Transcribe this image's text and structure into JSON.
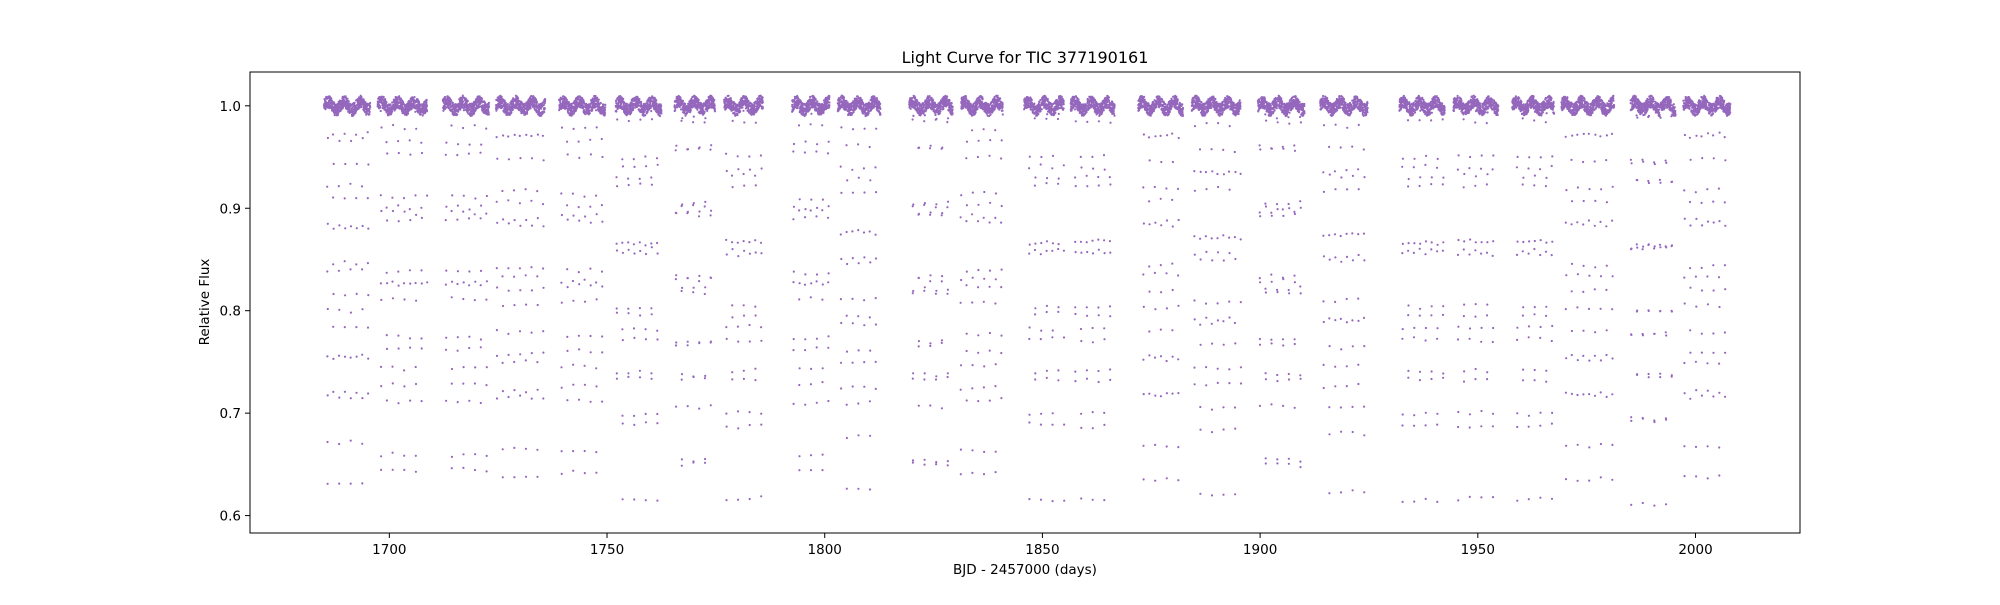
{
  "chart_data": {
    "type": "scatter",
    "title": "Light Curve for TIC 377190161",
    "xlabel": "BJD - 2457000 (days)",
    "ylabel": "Relative Flux",
    "xlim": [
      1668,
      2024
    ],
    "ylim": [
      0.583,
      1.033
    ],
    "xticks": [
      1700,
      1750,
      1800,
      1850,
      1900,
      1950,
      2000
    ],
    "yticks": [
      0.6,
      0.7,
      0.8,
      0.9,
      1.0
    ],
    "xtick_labels": [
      "1700",
      "1750",
      "1800",
      "1850",
      "1900",
      "1950",
      "2000"
    ],
    "ytick_labels": [
      "0.6",
      "0.7",
      "0.8",
      "0.9",
      "1.0"
    ],
    "grid": false,
    "legend": "none",
    "marker_color": "#9467bd",
    "series": [
      {
        "baseline_flux": 1.0,
        "eclipse_period_days": 2.66,
        "primary_eclipse_min_flux": 0.61,
        "secondary_eclipse_min_flux": 0.705,
        "observing_windows": [
          [
            1685.0,
            1695.6
          ],
          [
            1697.3,
            1708.7
          ],
          [
            1712.3,
            1722.9
          ],
          [
            1724.5,
            1735.8
          ],
          [
            1739.0,
            1749.6
          ],
          [
            1752.0,
            1762.5
          ],
          [
            1765.5,
            1774.8
          ],
          [
            1776.9,
            1785.8
          ],
          [
            1792.5,
            1801.1
          ],
          [
            1803.0,
            1812.8
          ],
          [
            1819.4,
            1829.4
          ],
          [
            1831.2,
            1840.9
          ],
          [
            1845.8,
            1855.0
          ],
          [
            1856.5,
            1866.6
          ],
          [
            1872.0,
            1882.3
          ],
          [
            1884.3,
            1895.6
          ],
          [
            1899.5,
            1910.2
          ],
          [
            1913.8,
            1924.7
          ],
          [
            1932.0,
            1942.4
          ],
          [
            1944.4,
            1954.7
          ],
          [
            1957.9,
            1967.5
          ],
          [
            1969.2,
            1981.3
          ],
          [
            1985.1,
            1995.4
          ],
          [
            1997.2,
            2008.0
          ]
        ]
      }
    ]
  }
}
